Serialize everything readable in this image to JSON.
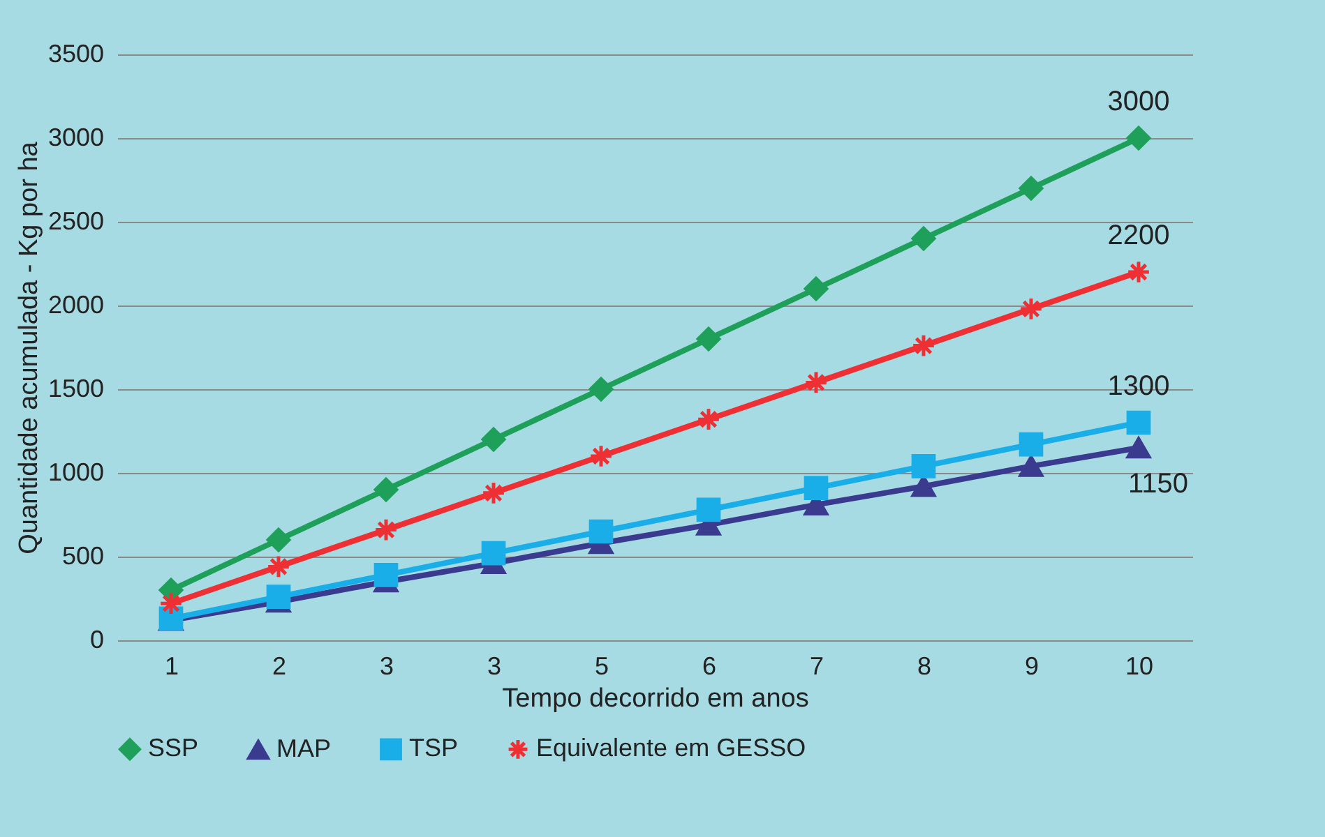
{
  "chart_data": {
    "type": "line",
    "xlabel": "Tempo decorrido em anos",
    "ylabel": "Quantidade acumulada - Kg por ha",
    "categories": [
      "1",
      "2",
      "3",
      "3",
      "5",
      "6",
      "7",
      "8",
      "9",
      "10"
    ],
    "ylim": [
      0,
      3500
    ],
    "yticks": [
      0,
      500,
      1000,
      1500,
      2000,
      2500,
      3000,
      3500
    ],
    "grid": "y",
    "legend": "bottom",
    "series": [
      {
        "name": "SSP",
        "color": "#1fa05a",
        "marker": "diamond",
        "values": [
          300,
          600,
          900,
          1200,
          1500,
          1800,
          2100,
          2400,
          2700,
          3000
        ],
        "value_labels": [
          null,
          null,
          null,
          null,
          null,
          null,
          null,
          null,
          null,
          "3000"
        ]
      },
      {
        "name": "MAP",
        "color": "#3a3b8f",
        "marker": "triangle",
        "values": [
          120,
          230,
          350,
          460,
          580,
          690,
          810,
          920,
          1040,
          1150
        ],
        "value_labels": [
          null,
          null,
          null,
          null,
          null,
          null,
          null,
          null,
          null,
          "1150"
        ]
      },
      {
        "name": "TSP",
        "color": "#1aaee8",
        "marker": "square",
        "values": [
          130,
          260,
          390,
          520,
          650,
          780,
          910,
          1040,
          1170,
          1300
        ],
        "value_labels": [
          null,
          null,
          null,
          null,
          null,
          null,
          null,
          null,
          null,
          "1300"
        ]
      },
      {
        "name": "Equivalente em GESSO",
        "color": "#ee3035",
        "marker": "cross",
        "values": [
          220,
          440,
          660,
          880,
          1100,
          1320,
          1540,
          1760,
          1980,
          2200
        ],
        "value_labels": [
          null,
          null,
          null,
          null,
          null,
          null,
          null,
          null,
          null,
          "2200"
        ]
      }
    ]
  }
}
